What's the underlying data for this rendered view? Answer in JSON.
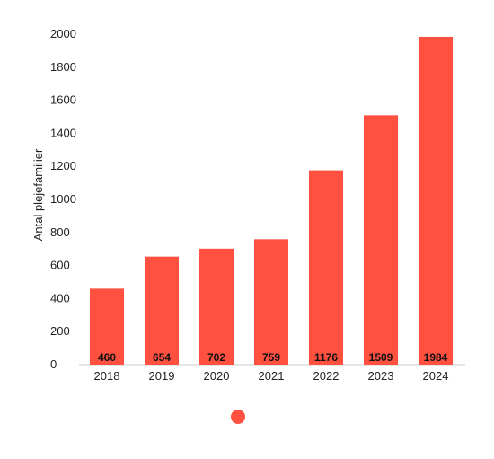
{
  "chart_data": {
    "type": "bar",
    "categories": [
      "2018",
      "2019",
      "2020",
      "2021",
      "2022",
      "2023",
      "2024"
    ],
    "series": [
      {
        "values": [
          460,
          654,
          702,
          759,
          1176,
          1509,
          1984
        ]
      }
    ],
    "data_labels": [
      "460",
      "654",
      "702",
      "759",
      "1176",
      "1509",
      "1984"
    ],
    "title": "",
    "xlabel": "",
    "ylabel": "Antal plejefamilier",
    "ylim": [
      0,
      2000
    ],
    "yticks": [
      0,
      200,
      400,
      600,
      800,
      1000,
      1200,
      1400,
      1600,
      1800,
      2000
    ],
    "grid": false,
    "legend": "bottom-center",
    "colors": {
      "bar": "#ff5040",
      "axis": "#cccccc"
    }
  }
}
